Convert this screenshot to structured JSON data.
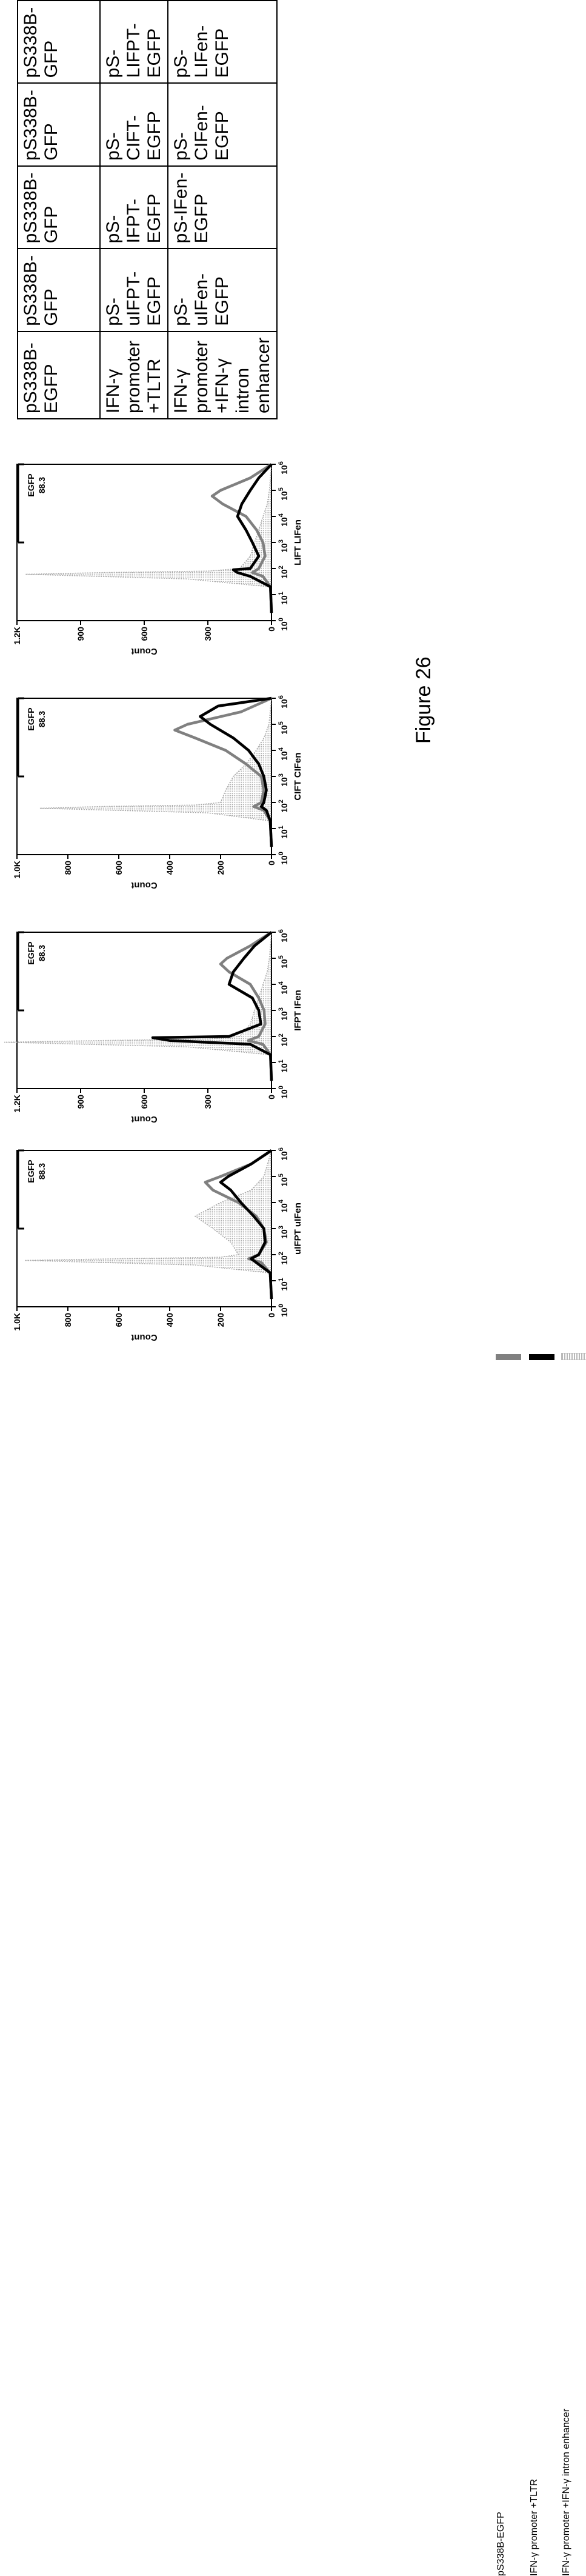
{
  "figure_caption": "Figure 26",
  "legend": [
    {
      "label": "pS338B-EGFP",
      "color": "#808080",
      "style": "thick grey line"
    },
    {
      "label": "IFN-γ  promoter +TLTR",
      "color": "#000000",
      "style": "thick black line"
    },
    {
      "label": "IFN-γ  promoter  +IFN-γ intron enhancer",
      "color": "#b0b0b0",
      "style": "light dotted fill"
    }
  ],
  "table": {
    "rows": [
      {
        "header": "pS338B-EGFP",
        "cells": [
          "pS338B-GFP",
          "pS338B-GFP",
          "pS338B-GFP",
          "pS338B-GFP"
        ]
      },
      {
        "header": "IFN-γ  promoter +TLTR",
        "cells": [
          "pS-uIFPT-EGFP",
          "pS-IFPT-EGFP",
          "pS-CIFT-EGFP",
          "pS-LIFPT-EGFP"
        ]
      },
      {
        "header": "IFN-γ  promoter  +IFN-γ intron enhancer",
        "cells": [
          "pS-uIFen-EGFP",
          "pS-IFen-EGFP",
          "pS-CIFen-EGFP",
          "pS-LIFen-EGFP"
        ]
      }
    ]
  },
  "chart_data": [
    {
      "type": "area",
      "xlabel": "uIFPT uIFen",
      "ylabel": "Count",
      "x_scale": "log",
      "xlim": [
        1,
        1000000
      ],
      "ylim": [
        0,
        1000
      ],
      "yticks": [
        "0",
        "200",
        "400",
        "600",
        "800",
        "1.0K"
      ],
      "xticks": [
        "10^0",
        "10^1",
        "10^2",
        "10^3",
        "10^4",
        "10^5",
        "10^6"
      ],
      "gate": {
        "label": "EGFP",
        "value": "88.3",
        "range": [
          1000,
          1000000
        ]
      },
      "series": [
        {
          "name": "pS338B-EGFP",
          "x": [
            2,
            20,
            50,
            70,
            100,
            300,
            1000,
            3000,
            10000,
            30000,
            60000,
            100000,
            300000,
            1000000
          ],
          "y": [
            0,
            5,
            40,
            90,
            50,
            20,
            30,
            60,
            130,
            230,
            260,
            200,
            80,
            0
          ]
        },
        {
          "name": "IFN-γ  promoter +TLTR",
          "x": [
            2,
            20,
            50,
            70,
            100,
            300,
            1000,
            3000,
            10000,
            30000,
            60000,
            100000,
            300000,
            1000000
          ],
          "y": [
            0,
            5,
            60,
            80,
            50,
            25,
            30,
            70,
            120,
            160,
            200,
            170,
            80,
            0
          ]
        },
        {
          "name": "IFN-γ  promoter  +IFN-γ intron enhancer",
          "x": [
            2,
            20,
            40,
            60,
            70,
            80,
            100,
            300,
            1000,
            3000,
            10000,
            30000,
            100000,
            1000000
          ],
          "y": [
            0,
            10,
            300,
            970,
            600,
            200,
            130,
            160,
            230,
            300,
            200,
            80,
            30,
            0
          ]
        }
      ]
    },
    {
      "type": "area",
      "xlabel": "IFPT IFen",
      "ylabel": "Count",
      "x_scale": "log",
      "xlim": [
        1,
        1000000
      ],
      "ylim": [
        0,
        1200
      ],
      "yticks": [
        "0",
        "300",
        "600",
        "900",
        "1.2K"
      ],
      "xticks": [
        "10^0",
        "10^1",
        "10^2",
        "10^3",
        "10^4",
        "10^5",
        "10^6"
      ],
      "gate": {
        "label": "EGFP",
        "value": "88.3",
        "range": [
          1000,
          1000000
        ]
      },
      "series": [
        {
          "name": "pS338B-EGFP",
          "x": [
            2,
            20,
            50,
            70,
            100,
            300,
            1000,
            3000,
            10000,
            30000,
            60000,
            100000,
            300000,
            1000000
          ],
          "y": [
            0,
            5,
            40,
            110,
            60,
            30,
            35,
            60,
            100,
            200,
            240,
            210,
            100,
            0
          ]
        },
        {
          "name": "IFN-γ  promoter +TLTR",
          "x": [
            2,
            20,
            50,
            70,
            90,
            100,
            300,
            1000,
            3000,
            10000,
            30000,
            100000,
            300000,
            1000000
          ],
          "y": [
            0,
            5,
            100,
            480,
            560,
            200,
            50,
            60,
            90,
            200,
            180,
            130,
            80,
            0
          ]
        },
        {
          "name": "IFN-γ  promoter  +IFN-γ intron enhancer",
          "x": [
            2,
            20,
            40,
            60,
            70,
            80,
            100,
            300,
            1000,
            3000,
            10000,
            30000,
            100000,
            1000000
          ],
          "y": [
            0,
            10,
            400,
            1260,
            800,
            300,
            150,
            100,
            80,
            60,
            40,
            20,
            10,
            0
          ]
        }
      ]
    },
    {
      "type": "area",
      "xlabel": "CIFT CIFen",
      "ylabel": "Count",
      "x_scale": "log",
      "xlim": [
        1,
        1000000
      ],
      "ylim": [
        0,
        1000
      ],
      "yticks": [
        "0",
        "200",
        "400",
        "600",
        "800",
        "1.0K"
      ],
      "xticks": [
        "10^0",
        "10^1",
        "10^2",
        "10^3",
        "10^4",
        "10^5",
        "10^6"
      ],
      "gate": {
        "label": "EGFP",
        "value": "88.3",
        "range": [
          1000,
          1000000
        ]
      },
      "series": [
        {
          "name": "pS338B-EGFP",
          "x": [
            2,
            20,
            50,
            70,
            100,
            300,
            1000,
            3000,
            10000,
            30000,
            60000,
            100000,
            300000,
            1000000
          ],
          "y": [
            0,
            5,
            30,
            70,
            40,
            30,
            40,
            100,
            180,
            300,
            380,
            330,
            120,
            0
          ]
        },
        {
          "name": "IFN-γ  promoter +TLTR",
          "x": [
            2,
            20,
            50,
            70,
            100,
            300,
            1000,
            3000,
            10000,
            30000,
            100000,
            200000,
            500000,
            1000000
          ],
          "y": [
            0,
            5,
            20,
            40,
            30,
            20,
            30,
            50,
            90,
            150,
            240,
            280,
            210,
            0
          ]
        },
        {
          "name": "IFN-γ  promoter  +IFN-γ intron enhancer",
          "x": [
            2,
            20,
            40,
            60,
            70,
            80,
            100,
            300,
            1000,
            3000,
            10000,
            30000,
            100000,
            1000000
          ],
          "y": [
            0,
            10,
            250,
            910,
            680,
            300,
            200,
            180,
            150,
            100,
            60,
            30,
            10,
            0
          ]
        }
      ]
    },
    {
      "type": "area",
      "xlabel": "LIFT LIFen",
      "ylabel": "Count",
      "x_scale": "log",
      "xlim": [
        1,
        1000000
      ],
      "ylim": [
        0,
        1200
      ],
      "yticks": [
        "0",
        "300",
        "600",
        "900",
        "1.2K"
      ],
      "xticks": [
        "10^0",
        "10^1",
        "10^2",
        "10^3",
        "10^4",
        "10^5",
        "10^6"
      ],
      "gate": {
        "label": "EGFP",
        "value": "88.3",
        "range": [
          1000,
          1000000
        ]
      },
      "series": [
        {
          "name": "pS338B-EGFP",
          "x": [
            2,
            20,
            50,
            70,
            100,
            300,
            1000,
            3000,
            10000,
            30000,
            60000,
            100000,
            300000,
            1000000
          ],
          "y": [
            0,
            5,
            40,
            90,
            60,
            30,
            40,
            70,
            120,
            230,
            280,
            240,
            100,
            0
          ]
        },
        {
          "name": "IFN-γ  promoter +TLTR",
          "x": [
            2,
            20,
            50,
            70,
            90,
            100,
            300,
            1000,
            3000,
            10000,
            30000,
            100000,
            300000,
            1000000
          ],
          "y": [
            0,
            5,
            100,
            160,
            180,
            100,
            60,
            90,
            120,
            160,
            140,
            100,
            60,
            0
          ]
        },
        {
          "name": "IFN-γ  promoter  +IFN-γ intron enhancer",
          "x": [
            2,
            20,
            40,
            60,
            70,
            80,
            100,
            300,
            1000,
            3000,
            10000,
            30000,
            100000,
            1000000
          ],
          "y": [
            0,
            10,
            400,
            1160,
            800,
            300,
            150,
            100,
            80,
            60,
            40,
            20,
            10,
            0
          ]
        }
      ]
    }
  ]
}
